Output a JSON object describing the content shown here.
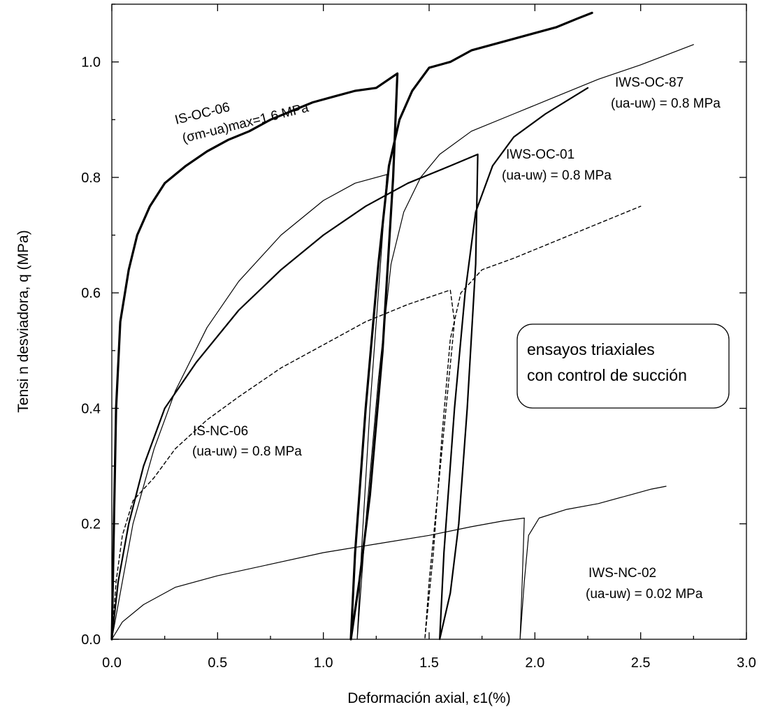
{
  "chart_data": {
    "type": "line",
    "title": "",
    "xlabel": "Deformación axial, ε1(%)",
    "ylabel": "Tensi n desviadora, q (MPa)",
    "xlim": [
      0,
      3
    ],
    "ylim": [
      0,
      1.1
    ],
    "x_ticks": [
      "0.0",
      "0.5",
      "1.0",
      "1.5",
      "2.0",
      "2.5",
      "3.0"
    ],
    "y_ticks": [
      "0.0",
      "0.2",
      "0.4",
      "0.6",
      "0.8",
      "1.0"
    ],
    "grid": false,
    "legend": "none",
    "box_text": [
      "ensayos triaxiales",
      "con control de succión"
    ],
    "annotations": {
      "is_oc_06": [
        "IS-OC-06",
        "(σm-ua)max=1.6 MPa"
      ],
      "iws_oc_87": [
        "IWS-OC-87",
        "(ua-uw) = 0.8 MPa"
      ],
      "iws_oc_01": [
        "IWS-OC-01",
        "(ua-uw) = 0.8 MPa"
      ],
      "is_nc_06": [
        "IS-NC-06",
        "(ua-uw) =  0.8 MPa"
      ],
      "iws_nc_02": [
        "IWS-NC-02",
        "(ua-uw) = 0.02 MPa"
      ]
    },
    "series": [
      {
        "name": "IS-OC-06",
        "style": "thick",
        "points": [
          [
            0,
            0
          ],
          [
            0.01,
            0.2
          ],
          [
            0.02,
            0.4
          ],
          [
            0.04,
            0.55
          ],
          [
            0.08,
            0.64
          ],
          [
            0.12,
            0.7
          ],
          [
            0.18,
            0.75
          ],
          [
            0.25,
            0.79
          ],
          [
            0.35,
            0.82
          ],
          [
            0.45,
            0.845
          ],
          [
            0.55,
            0.865
          ],
          [
            0.65,
            0.88
          ],
          [
            0.75,
            0.9
          ],
          [
            0.85,
            0.915
          ],
          [
            0.95,
            0.93
          ],
          [
            1.05,
            0.94
          ],
          [
            1.15,
            0.95
          ],
          [
            1.25,
            0.955
          ],
          [
            1.35,
            0.98
          ],
          [
            1.33,
            0.8
          ],
          [
            1.28,
            0.5
          ],
          [
            1.22,
            0.25
          ],
          [
            1.17,
            0.1
          ],
          [
            1.13,
            0
          ],
          [
            1.15,
            0.15
          ],
          [
            1.2,
            0.4
          ],
          [
            1.26,
            0.65
          ],
          [
            1.31,
            0.82
          ],
          [
            1.36,
            0.9
          ],
          [
            1.42,
            0.95
          ],
          [
            1.5,
            0.99
          ],
          [
            1.6,
            1.0
          ],
          [
            1.7,
            1.02
          ],
          [
            1.8,
            1.03
          ],
          [
            1.9,
            1.04
          ],
          [
            2.0,
            1.05
          ],
          [
            2.1,
            1.06
          ],
          [
            2.2,
            1.075
          ],
          [
            2.27,
            1.085
          ]
        ]
      },
      {
        "name": "IWS-OC-87",
        "style": "thin",
        "points": [
          [
            0,
            0
          ],
          [
            0.05,
            0.1
          ],
          [
            0.1,
            0.2
          ],
          [
            0.2,
            0.33
          ],
          [
            0.3,
            0.43
          ],
          [
            0.45,
            0.54
          ],
          [
            0.6,
            0.62
          ],
          [
            0.8,
            0.7
          ],
          [
            1.0,
            0.76
          ],
          [
            1.15,
            0.79
          ],
          [
            1.3,
            0.805
          ],
          [
            1.27,
            0.65
          ],
          [
            1.22,
            0.4
          ],
          [
            1.18,
            0.15
          ],
          [
            1.16,
            0
          ],
          [
            1.2,
            0.2
          ],
          [
            1.26,
            0.45
          ],
          [
            1.32,
            0.65
          ],
          [
            1.38,
            0.74
          ],
          [
            1.46,
            0.8
          ],
          [
            1.55,
            0.84
          ],
          [
            1.7,
            0.88
          ],
          [
            1.9,
            0.91
          ],
          [
            2.1,
            0.94
          ],
          [
            2.3,
            0.97
          ],
          [
            2.5,
            0.995
          ],
          [
            2.75,
            1.03
          ]
        ]
      },
      {
        "name": "IWS-OC-01",
        "style": "medium",
        "points": [
          [
            0,
            0
          ],
          [
            0.03,
            0.1
          ],
          [
            0.08,
            0.2
          ],
          [
            0.15,
            0.3
          ],
          [
            0.25,
            0.4
          ],
          [
            0.4,
            0.48
          ],
          [
            0.6,
            0.57
          ],
          [
            0.8,
            0.64
          ],
          [
            1.0,
            0.7
          ],
          [
            1.2,
            0.75
          ],
          [
            1.4,
            0.79
          ],
          [
            1.6,
            0.82
          ],
          [
            1.73,
            0.84
          ],
          [
            1.72,
            0.65
          ],
          [
            1.68,
            0.4
          ],
          [
            1.64,
            0.2
          ],
          [
            1.6,
            0.08
          ],
          [
            1.55,
            0
          ],
          [
            1.57,
            0.15
          ],
          [
            1.62,
            0.4
          ],
          [
            1.67,
            0.6
          ],
          [
            1.72,
            0.74
          ],
          [
            1.8,
            0.82
          ],
          [
            1.9,
            0.87
          ],
          [
            2.05,
            0.91
          ],
          [
            2.25,
            0.955
          ]
        ]
      },
      {
        "name": "IS-NC-06",
        "style": "dashed",
        "points": [
          [
            0,
            0
          ],
          [
            0.02,
            0.1
          ],
          [
            0.05,
            0.18
          ],
          [
            0.1,
            0.24
          ],
          [
            0.2,
            0.28
          ],
          [
            0.3,
            0.33
          ],
          [
            0.45,
            0.38
          ],
          [
            0.6,
            0.42
          ],
          [
            0.8,
            0.47
          ],
          [
            1.0,
            0.51
          ],
          [
            1.2,
            0.55
          ],
          [
            1.4,
            0.58
          ],
          [
            1.6,
            0.605
          ],
          [
            1.62,
            0.55
          ],
          [
            1.58,
            0.4
          ],
          [
            1.54,
            0.25
          ],
          [
            1.5,
            0.1
          ],
          [
            1.48,
            0
          ],
          [
            1.52,
            0.15
          ],
          [
            1.56,
            0.35
          ],
          [
            1.6,
            0.52
          ],
          [
            1.65,
            0.6
          ],
          [
            1.75,
            0.64
          ],
          [
            1.9,
            0.66
          ],
          [
            2.1,
            0.69
          ],
          [
            2.3,
            0.72
          ],
          [
            2.5,
            0.75
          ]
        ]
      },
      {
        "name": "IWS-NC-02",
        "style": "thin",
        "points": [
          [
            0,
            0
          ],
          [
            0.05,
            0.03
          ],
          [
            0.15,
            0.06
          ],
          [
            0.3,
            0.09
          ],
          [
            0.5,
            0.11
          ],
          [
            0.75,
            0.13
          ],
          [
            1.0,
            0.15
          ],
          [
            1.25,
            0.165
          ],
          [
            1.5,
            0.18
          ],
          [
            1.7,
            0.195
          ],
          [
            1.85,
            0.205
          ],
          [
            1.95,
            0.21
          ],
          [
            1.94,
            0.1
          ],
          [
            1.93,
            0
          ],
          [
            1.95,
            0.1
          ],
          [
            1.97,
            0.18
          ],
          [
            2.02,
            0.21
          ],
          [
            2.15,
            0.225
          ],
          [
            2.3,
            0.235
          ],
          [
            2.45,
            0.25
          ],
          [
            2.55,
            0.26
          ],
          [
            2.62,
            0.265
          ]
        ]
      }
    ]
  }
}
